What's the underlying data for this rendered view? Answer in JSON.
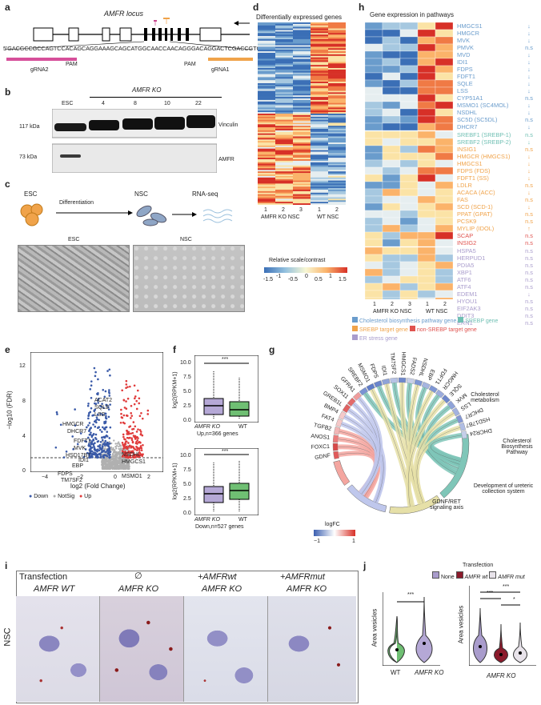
{
  "panels": {
    "a": "a",
    "b": "b",
    "c": "c",
    "d": "d",
    "e": "e",
    "f": "f",
    "g": "g",
    "h": "h",
    "i": "i",
    "j": "j"
  },
  "a": {
    "locus_title": "AMFR locus",
    "sequence": "5'GACGCCGCCAGTCCACAGCAGGAAAGCAGCATGGCAACCAACAGGGACAGGACTCGACCGTGG 3'",
    "pam1": "PAM",
    "pam2": "PAM",
    "grna2": "gRNA2",
    "grna1": "gRNA1"
  },
  "b": {
    "ko_title": "AMFR KO",
    "lanes": [
      "ESC",
      "4",
      "8",
      "10",
      "22"
    ],
    "kda_top": "117 kDa",
    "kda_bottom": "73 kDa",
    "band_top": "Vinculin",
    "band_bottom": "AMFR"
  },
  "c": {
    "esc": "ESC",
    "differentiation": "Differentiation",
    "nsc": "NSC",
    "rnaseq": "RNA-seq",
    "img_esc": "ESC",
    "img_nsc": "NSC"
  },
  "d": {
    "title": "Differentially expressed genes",
    "cols": [
      "1",
      "2",
      "3",
      "1",
      "2"
    ],
    "group_ko": "AMFR KO NSC",
    "group_wt": "WT NSC",
    "legend_title": "Relative scale/contrast",
    "legend_ticks": [
      "-1.5",
      "-1",
      "-0.5",
      "0",
      "0.5",
      "1",
      "1.5"
    ]
  },
  "h": {
    "title": "Gene expression in pathways",
    "genes": [
      {
        "g": "HMGCS1",
        "s": "↓",
        "c": "#6a9ccc"
      },
      {
        "g": "HMGCR",
        "s": "↓",
        "c": "#6a9ccc"
      },
      {
        "g": "MVK",
        "s": "↓",
        "c": "#6a9ccc"
      },
      {
        "g": "PMVK",
        "s": "n.s",
        "c": "#6a9ccc"
      },
      {
        "g": "MVD",
        "s": "↓",
        "c": "#6a9ccc"
      },
      {
        "g": "IDI1",
        "s": "↓",
        "c": "#6a9ccc"
      },
      {
        "g": "FDPS",
        "s": "↓",
        "c": "#6a9ccc"
      },
      {
        "g": "FDFT1",
        "s": "↓",
        "c": "#6a9ccc"
      },
      {
        "g": "SQLE",
        "s": "↓",
        "c": "#6a9ccc"
      },
      {
        "g": "LSS",
        "s": "↓",
        "c": "#6a9ccc"
      },
      {
        "g": "CYP51A1",
        "s": "n.s",
        "c": "#6a9ccc"
      },
      {
        "g": "MSMO1 (SC4MOL)",
        "s": "↓",
        "c": "#6a9ccc"
      },
      {
        "g": "NSDHL",
        "s": "↓",
        "c": "#6a9ccc"
      },
      {
        "g": "SC5D (SC5DL)",
        "s": "n.s",
        "c": "#6a9ccc"
      },
      {
        "g": "DHCR7",
        "s": "↓",
        "c": "#6a9ccc"
      },
      {
        "g": "SREBF1 (SREBP-1)",
        "s": "n.s",
        "c": "#6fbfb3"
      },
      {
        "g": "SREBF2 (SREBP-2)",
        "s": "↓",
        "c": "#6fbfb3"
      },
      {
        "g": "INSIG1",
        "s": "n.s",
        "c": "#f0a34a"
      },
      {
        "g": "HMGCR (HMGCS1)",
        "s": "↓",
        "c": "#f0a34a"
      },
      {
        "g": "HMGCS1",
        "s": "↓",
        "c": "#f0a34a"
      },
      {
        "g": "FDPS (FDS)",
        "s": "↓",
        "c": "#f0a34a"
      },
      {
        "g": "FDFT1 (SS)",
        "s": "↓",
        "c": "#f0a34a"
      },
      {
        "g": "LDLR",
        "s": "n.s",
        "c": "#f0a34a"
      },
      {
        "g": "ACACA (ACC)",
        "s": "↓",
        "c": "#f0a34a"
      },
      {
        "g": "FAS",
        "s": "n.s",
        "c": "#f0a34a"
      },
      {
        "g": "SCD (SCD-1)",
        "s": "↓",
        "c": "#f0a34a"
      },
      {
        "g": "PPAT (GPAT)",
        "s": "n.s",
        "c": "#f0a34a"
      },
      {
        "g": "PCSK9",
        "s": "n.s",
        "c": "#f0a34a"
      },
      {
        "g": "MYLIP (IDOL)",
        "s": "↑",
        "c": "#f0a34a"
      },
      {
        "g": "SCAP",
        "s": "n.s",
        "c": "#e0534f"
      },
      {
        "g": "INSIG2",
        "s": "n.s",
        "c": "#e0534f"
      },
      {
        "g": "HSPA5",
        "s": "n.s",
        "c": "#a99ccc"
      },
      {
        "g": "HERPUD1",
        "s": "n.s",
        "c": "#a99ccc"
      },
      {
        "g": "PDIA5",
        "s": "n.s",
        "c": "#a99ccc"
      },
      {
        "g": "XBP1",
        "s": "n.s",
        "c": "#a99ccc"
      },
      {
        "g": "ATF6",
        "s": "n.s",
        "c": "#a99ccc"
      },
      {
        "g": "ATF4",
        "s": "n.s",
        "c": "#a99ccc"
      },
      {
        "g": "EDEM1",
        "s": "↓",
        "c": "#a99ccc"
      },
      {
        "g": "HYOU1",
        "s": "n.s",
        "c": "#a99ccc"
      },
      {
        "g": "EIF2AK3",
        "s": "n.s",
        "c": "#a99ccc"
      },
      {
        "g": "DDIT3",
        "s": "n.s",
        "c": "#a99ccc"
      },
      {
        "g": "ERN1",
        "s": "n.s",
        "c": "#a99ccc"
      }
    ],
    "cols": [
      "1",
      "2",
      "3",
      "1",
      "2"
    ],
    "group_ko": "AMFR KO NSC",
    "group_wt": "WT NSC",
    "legend": [
      {
        "label": "Cholesterol biosynthesis pathway gene",
        "color": "#6a9ccc"
      },
      {
        "label": "SREBP gene",
        "color": "#6fbfb3"
      },
      {
        "label": "SREBP target gene",
        "color": "#f0a34a"
      },
      {
        "label": "non-SREBP target gene",
        "color": "#e0534f"
      },
      {
        "label": "ER stress gene",
        "color": "#a99ccc"
      }
    ]
  },
  "e": {
    "ylabel": "−log10 (FDR)",
    "xlabel": "log2 (Fold Change)",
    "yticks": [
      "0",
      "4",
      "8",
      "12"
    ],
    "xticks": [
      "−4",
      "−2",
      "0",
      "2"
    ],
    "labels_left": [
      "ACAT2",
      "SQLE",
      "LSS",
      "HMGCR",
      "DHCR7",
      "FDFT1",
      "MVK",
      "HSD17B7",
      "IDI1",
      "EBP",
      "FDPS",
      "TM7SF2"
    ],
    "labels_right": [
      "NSDHL",
      "HMGCS1",
      "MSMO1"
    ],
    "legend": [
      {
        "label": "Down",
        "color": "#3a5aa8"
      },
      {
        "label": "NotSig",
        "color": "#aaaaaa"
      },
      {
        "label": "Up",
        "color": "#e03a3a"
      }
    ]
  },
  "f": {
    "ylabel": "log2(RPKM+1)",
    "top_yticks": [
      "0.0",
      "2.5",
      "5.0",
      "7.5",
      "10.0"
    ],
    "bottom_yticks": [
      "0.0",
      "2.5",
      "5.0",
      "7.5",
      "10.0"
    ],
    "x_ko": "AMFR KO",
    "x_wt": "WT",
    "sig": "***",
    "up_caption": "Up,n=366 genes",
    "down_caption": "Down,n=527 genes"
  },
  "g": {
    "genes": [
      "GDNF",
      "FOXC1",
      "ANOS1",
      "TGFB2",
      "FAT4",
      "BMP4",
      "GREB1L",
      "SOX11",
      "GFRA1",
      "SREBF2",
      "MSMO1",
      "FDPS",
      "IDI1",
      "TM7SF2",
      "HMGCS1",
      "FADS2",
      "NSDHL",
      "EBP",
      "FDFT1",
      "HMGCR",
      "SQLE",
      "MVK",
      "LSS",
      "DHCR7",
      "HSD17B7",
      "DHCR24"
    ],
    "terms": [
      "Cholesterol metabolism",
      "Cholesterol Biosynthesis Pathway",
      "Development of ureteric collection system",
      "GDNF/RET signaling axis"
    ],
    "legend_title": "logFC",
    "legend_min": "−1",
    "legend_max": "1"
  },
  "i": {
    "transfection": "Transfection",
    "empty": "∅",
    "wt": "+AMFRwt",
    "mut": "+AMFRmut",
    "row_amfr_wt": "AMFR WT",
    "row_ko1": "AMFR KO",
    "row_ko2": "AMFR KO",
    "row_ko3": "AMFR KO",
    "nsc": "NSC"
  },
  "j": {
    "ylabel": "Area vesicles",
    "transfection": "Transfection",
    "legend": [
      {
        "label": "None",
        "color": "#a99ccc"
      },
      {
        "label": "AMFR wt",
        "color": "#8b1a2b"
      },
      {
        "label": "AMFR mut",
        "color": "#e8e3ea"
      }
    ],
    "left_x": [
      "WT",
      "AMFR KO"
    ],
    "right_x": "AMFR KO",
    "sig": [
      "***",
      "***",
      "***",
      "*"
    ]
  }
}
